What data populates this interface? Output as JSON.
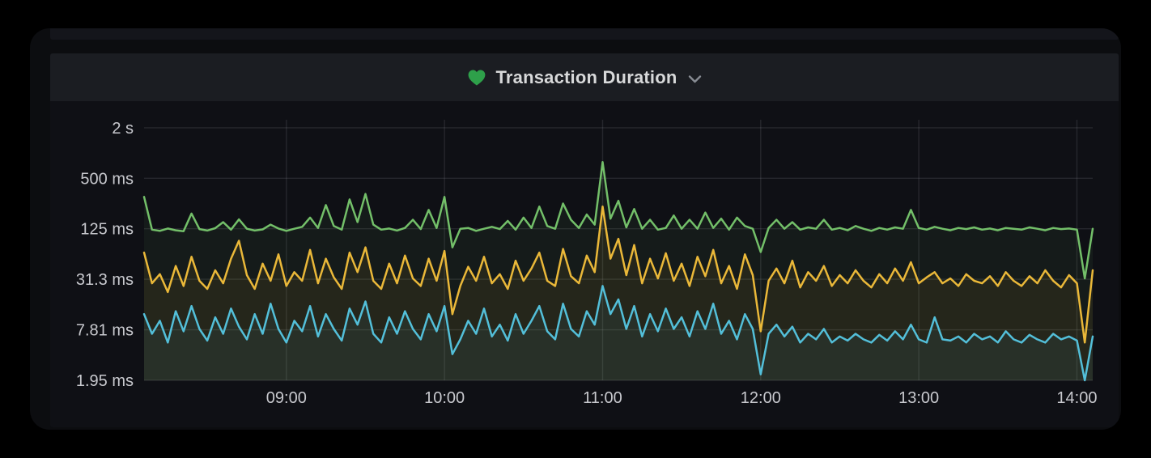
{
  "panel": {
    "title": "Transaction Duration",
    "heart_color": "#2EA04A",
    "chevron_color": "#878B93"
  },
  "colors": {
    "panel_header_bg": "#1b1d22",
    "panel_bg": "#0f1015",
    "window_bg": "#0c0d10",
    "axis_text": "#C8C9CE",
    "grid": "rgba(204,204,220,0.12)"
  },
  "chart_data": {
    "type": "line",
    "title": "Transaction Duration",
    "legend": "none",
    "grid": true,
    "x_axis": {
      "start_min": 486,
      "step_min": 3,
      "ticks": [
        {
          "min": 540,
          "label": "09:00"
        },
        {
          "min": 600,
          "label": "10:00"
        },
        {
          "min": 660,
          "label": "11:00"
        },
        {
          "min": 720,
          "label": "12:00"
        },
        {
          "min": 780,
          "label": "13:00"
        },
        {
          "min": 840,
          "label": "14:00"
        }
      ]
    },
    "y_axis": {
      "unit": "ms",
      "scale": "log4",
      "range_ms": [
        1.95,
        2500
      ],
      "ticks": [
        {
          "value": 2000,
          "label": "2 s"
        },
        {
          "value": 500,
          "label": "500 ms"
        },
        {
          "value": 125,
          "label": "125 ms"
        },
        {
          "value": 31.3,
          "label": "31.3 ms"
        },
        {
          "value": 7.81,
          "label": "7.81 ms"
        },
        {
          "value": 1.95,
          "label": "1.95 ms"
        }
      ]
    },
    "series": [
      {
        "name": "green",
        "color": "#73BF69",
        "fill_opacity": 0.07,
        "values": [
          300,
          122,
          118,
          126,
          120,
          117,
          190,
          124,
          119,
          127,
          150,
          122,
          162,
          125,
          119,
          123,
          140,
          126,
          118,
          125,
          132,
          170,
          128,
          240,
          135,
          122,
          280,
          150,
          325,
          140,
          122,
          126,
          119,
          128,
          160,
          124,
          210,
          128,
          300,
          75,
          125,
          128,
          118,
          125,
          132,
          124,
          155,
          122,
          170,
          128,
          230,
          135,
          125,
          250,
          160,
          128,
          185,
          140,
          780,
          165,
          270,
          130,
          215,
          125,
          160,
          122,
          128,
          180,
          125,
          160,
          125,
          195,
          128,
          165,
          122,
          170,
          135,
          125,
          66,
          128,
          160,
          125,
          150,
          122,
          130,
          125,
          160,
          122,
          128,
          120,
          135,
          125,
          118,
          128,
          122,
          130,
          125,
          210,
          128,
          122,
          132,
          125,
          120,
          128,
          124,
          130,
          122,
          126,
          120,
          128,
          125,
          122,
          130,
          125,
          120,
          128,
          124,
          126,
          122,
          32,
          125
        ]
      },
      {
        "name": "yellow",
        "color": "#EAB839",
        "fill_opacity": 0.08,
        "values": [
          65,
          28,
          36,
          22,
          45,
          26,
          58,
          30,
          24,
          40,
          28,
          55,
          90,
          35,
          24,
          48,
          30,
          62,
          26,
          38,
          30,
          70,
          28,
          55,
          33,
          24,
          65,
          38,
          75,
          30,
          24,
          48,
          28,
          60,
          32,
          26,
          55,
          30,
          68,
          12,
          26,
          44,
          30,
          58,
          28,
          36,
          24,
          52,
          30,
          42,
          65,
          30,
          26,
          72,
          34,
          28,
          60,
          38,
          230,
          55,
          95,
          35,
          80,
          28,
          55,
          32,
          64,
          30,
          48,
          26,
          58,
          34,
          70,
          28,
          45,
          24,
          62,
          35,
          7.5,
          30,
          42,
          28,
          52,
          25,
          38,
          30,
          45,
          26,
          35,
          28,
          40,
          30,
          25,
          36,
          28,
          42,
          30,
          50,
          28,
          33,
          38,
          28,
          32,
          26,
          36,
          30,
          28,
          34,
          26,
          38,
          30,
          26,
          34,
          28,
          40,
          30,
          25,
          35,
          28,
          5.5,
          40
        ]
      },
      {
        "name": "blue",
        "color": "#53BFD9",
        "fill_opacity": 0.07,
        "values": [
          12,
          7,
          10,
          5.5,
          13,
          7.5,
          15,
          8,
          5.8,
          11,
          7,
          14,
          8.5,
          6,
          12,
          7,
          16,
          8,
          5.5,
          10,
          7.5,
          15,
          6.5,
          12,
          8,
          5.8,
          14,
          9,
          17,
          7,
          5.5,
          11,
          7,
          13,
          8,
          6,
          12,
          7.5,
          15,
          4,
          6,
          10,
          7,
          14,
          6.5,
          9,
          5.8,
          12,
          7,
          10,
          15,
          7.5,
          6,
          16,
          8,
          6.5,
          13,
          9,
          26,
          12,
          18,
          8,
          15,
          6.5,
          12,
          7.5,
          14,
          8,
          11,
          6.5,
          13,
          8,
          16,
          7,
          10,
          6,
          12,
          8,
          2.3,
          7,
          9,
          6.5,
          8.5,
          5.5,
          7,
          6,
          8,
          5.5,
          6.5,
          5.8,
          7,
          6,
          5.5,
          6.8,
          5.8,
          7.5,
          6,
          9,
          6,
          5.5,
          11,
          6,
          5.8,
          6.5,
          5.5,
          7,
          6,
          6.5,
          5.5,
          7.5,
          6,
          5.5,
          6.8,
          6,
          5.5,
          7,
          6,
          6.5,
          5.8,
          1.95,
          6.5
        ]
      }
    ]
  }
}
